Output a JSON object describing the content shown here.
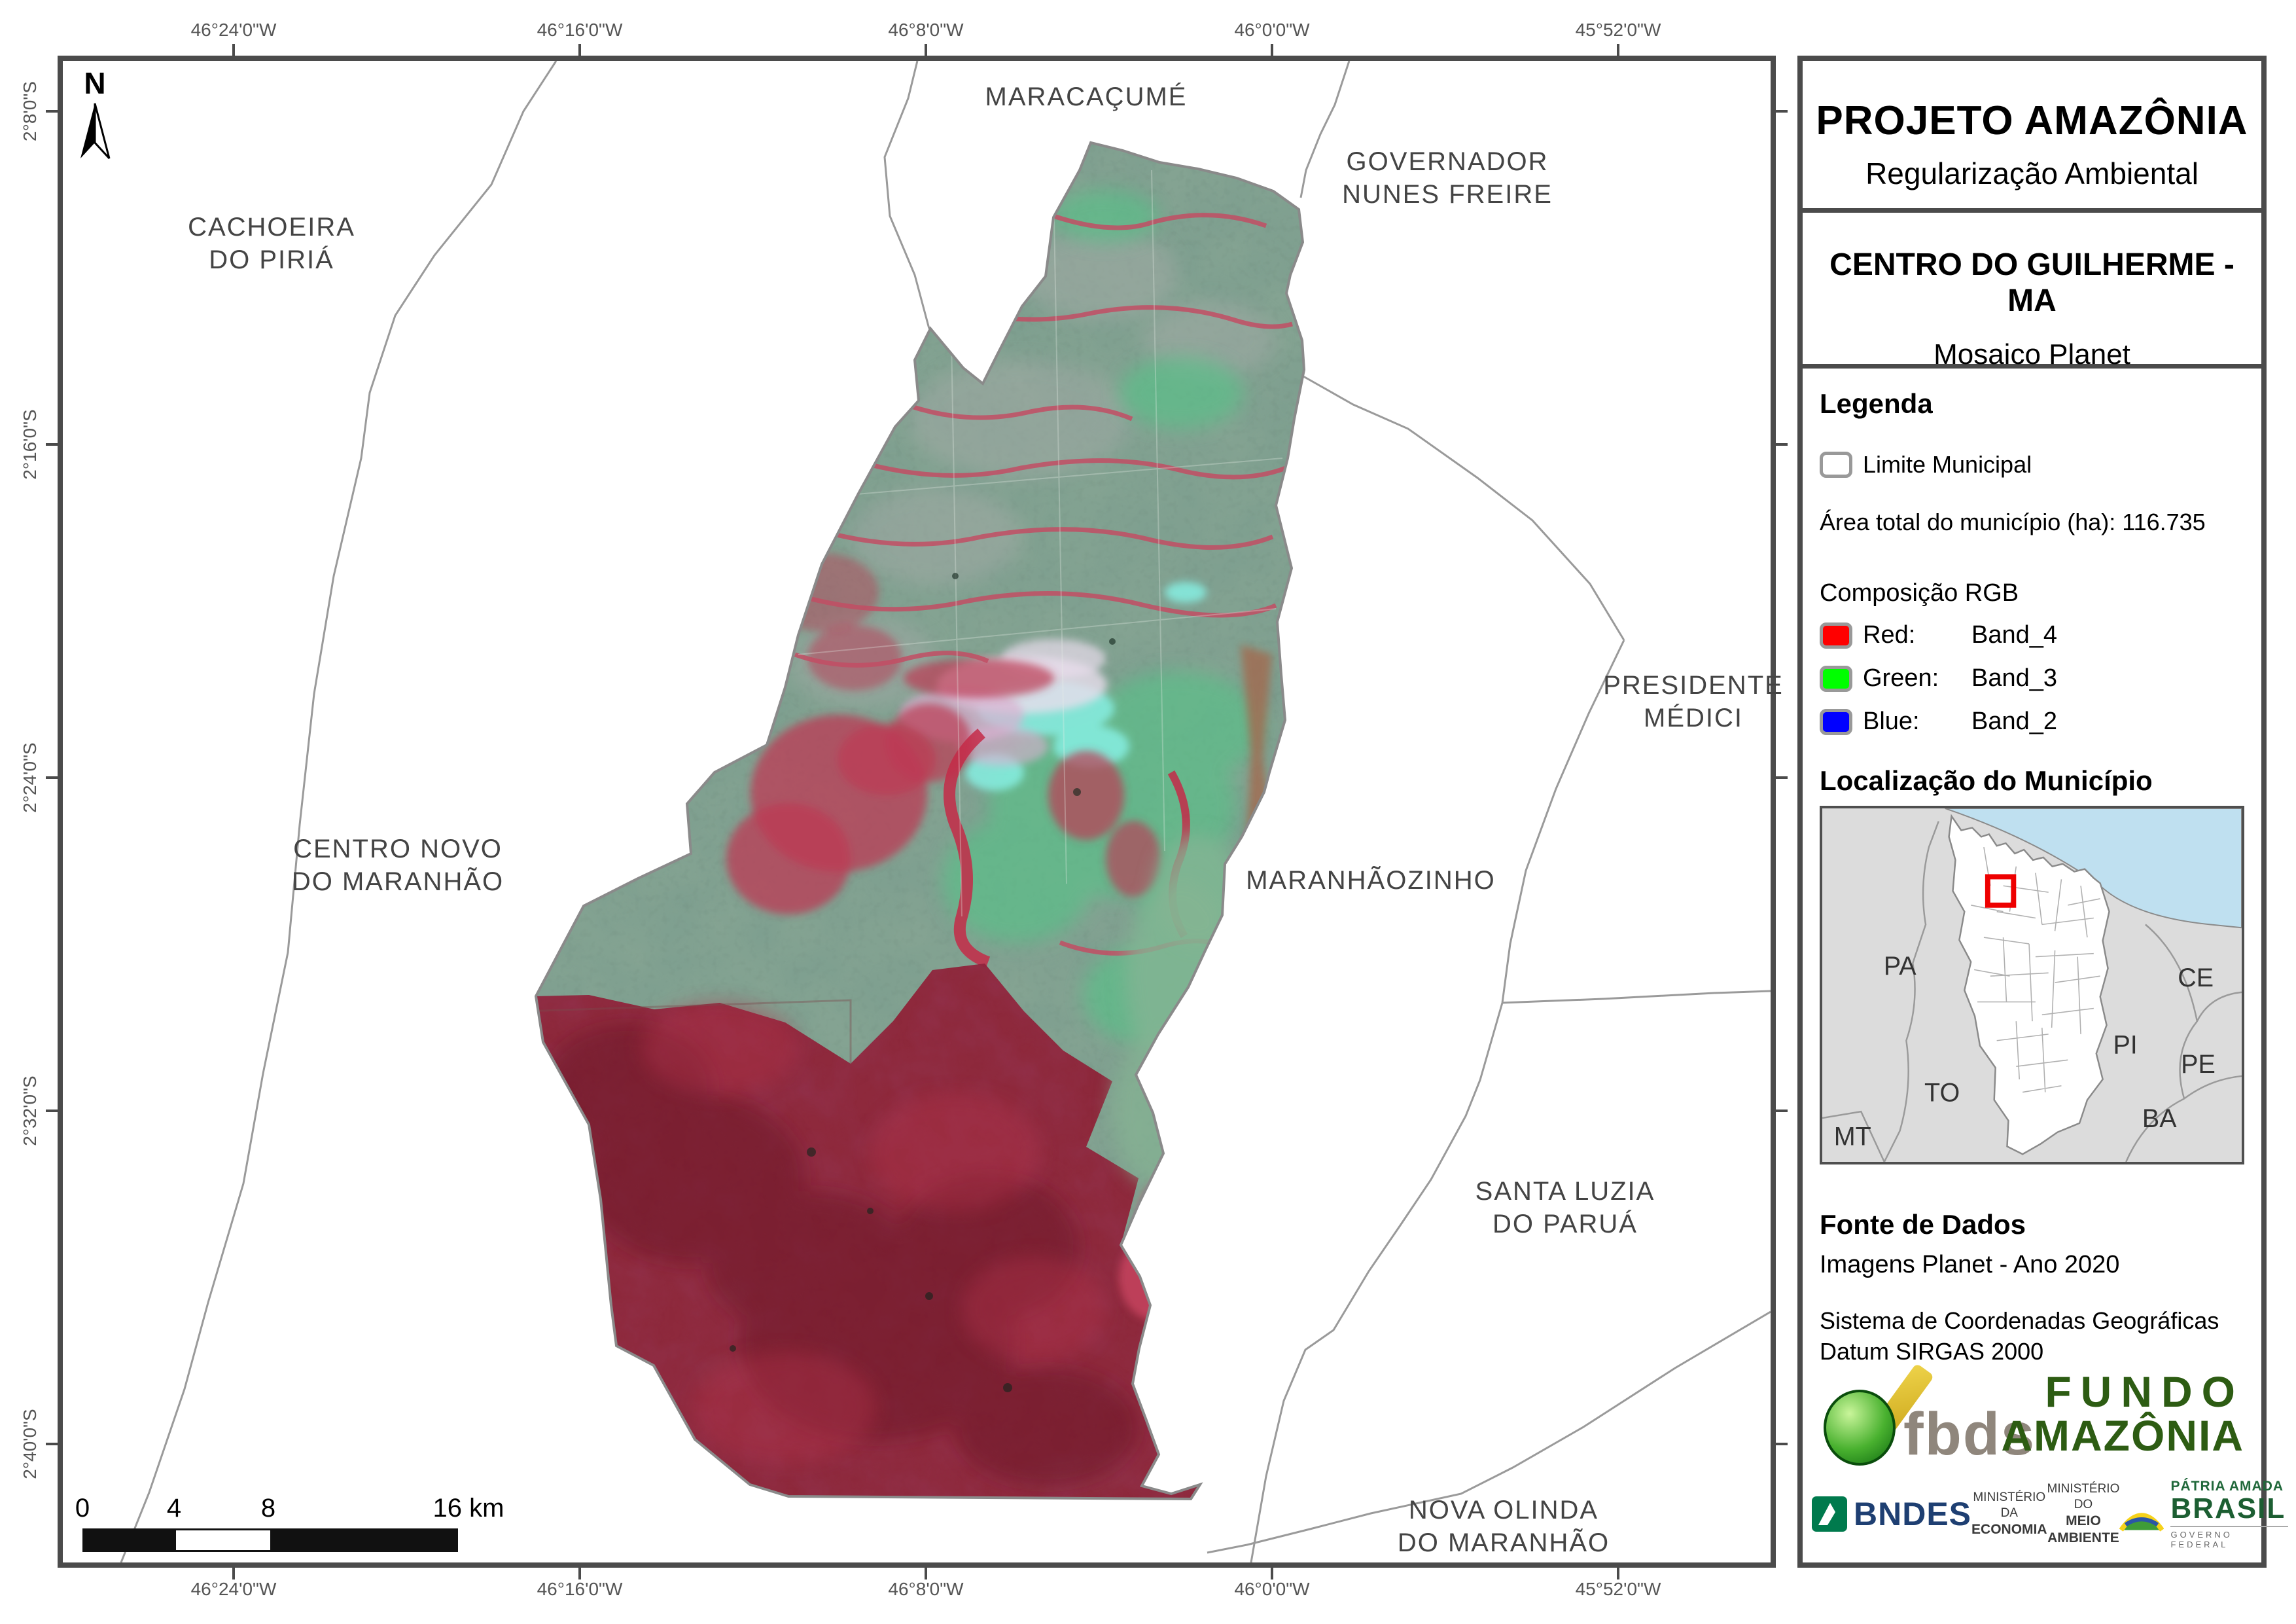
{
  "panel": {
    "title": "PROJETO AMAZÔNIA",
    "subtitle": "Regularização Ambiental",
    "municipality": "CENTRO DO GUILHERME - MA",
    "product": "Mosaico Planet",
    "legend": {
      "heading": "Legenda",
      "limite_label": "Limite Municipal",
      "area_text": "Área total do município (ha): 116.735",
      "rgb_heading": "Composição RGB",
      "rgb_rows": [
        {
          "label": "Red:",
          "band": "Band_4",
          "color": "#ff0000"
        },
        {
          "label": "Green:",
          "band": "Band_3",
          "color": "#00ff00"
        },
        {
          "label": "Blue:",
          "band": "Band_2",
          "color": "#0000ff"
        }
      ]
    },
    "location": {
      "heading": "Localização do Município",
      "state_labels": [
        "PA",
        "CE",
        "PI",
        "PE",
        "BA",
        "TO",
        "MT"
      ]
    },
    "fonte": {
      "heading": "Fonte de Dados",
      "line1": "Imagens Planet - Ano 2020",
      "line2": "Sistema de Coordenadas Geográficas\nDatum SIRGAS 2000"
    },
    "logos": {
      "fbds": "fbds",
      "fundo_line1": "FUNDO",
      "fundo_line2": "AMAZÔNIA",
      "bndes": "BNDES",
      "ministries": [
        {
          "line1": "MINISTÉRIO DA",
          "line2": "ECONOMIA"
        },
        {
          "line1": "MINISTÉRIO DO",
          "line2": "MEIO AMBIENTE"
        }
      ],
      "patria_line1": "PÁTRIA AMADA",
      "patria_line2": "BRASIL",
      "patria_line3": "GOVERNO FEDERAL"
    }
  },
  "map": {
    "north_label": "N",
    "neighbor_labels": [
      "MARACAÇUMÉ",
      "GOVERNADOR\nNUNES FREIRE",
      "CACHOEIRA\nDO PIRIÁ",
      "CENTRO NOVO\nDO MARANHÃO",
      "PRESIDENTE\nMÉDICI",
      "MARANHÃOZINHO",
      "SANTA LUZIA\nDO PARUÁ",
      "NOVA OLINDA\nDO MARANHÃO"
    ],
    "axis": {
      "lon": [
        "46°24'0\"W",
        "46°16'0\"W",
        "46°8'0\"W",
        "46°0'0\"W",
        "45°52'0\"W"
      ],
      "lat": [
        "2°8'0\"S",
        "2°16'0\"S",
        "2°24'0\"S",
        "2°32'0\"S",
        "2°40'0\"S"
      ]
    },
    "scalebar": {
      "labels": [
        "0",
        "4",
        "8",
        "16 km"
      ]
    }
  },
  "colors": {
    "frame": "#4b4b4b",
    "boundary_line": "#9a9a9a",
    "region_label": "#444444",
    "band_red": "#ff0000",
    "band_green": "#00ff00",
    "band_blue": "#0000ff",
    "inset_ocean": "#bfe0f0",
    "inset_land": "#dcdcdc",
    "municipality_highlight_box": "#ee0000",
    "fundo_green": "#2d5c13",
    "bndes_blue": "#1e3f72"
  }
}
